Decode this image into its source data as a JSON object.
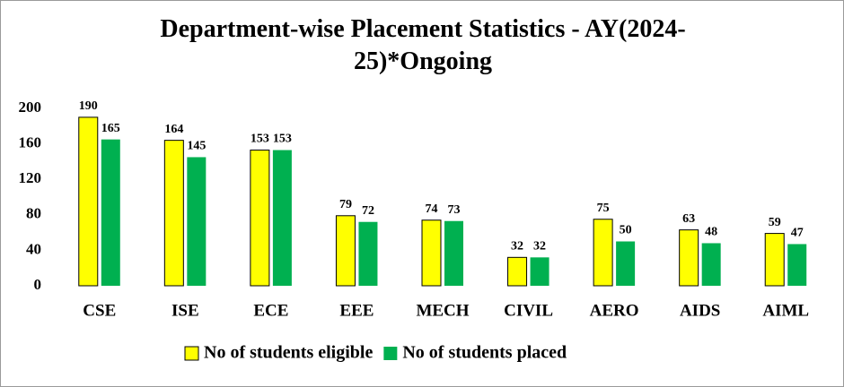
{
  "chart_data": {
    "type": "bar",
    "title": "Department-wise Placement Statistics - AY(2024-25)*Ongoing",
    "categories": [
      "CSE",
      "ISE",
      "ECE",
      "EEE",
      "MECH",
      "CIVIL",
      "AERO",
      "AIDS",
      "AIML"
    ],
    "series": [
      {
        "name": "No of students eligible",
        "color": "#ffff00",
        "values": [
          190,
          164,
          153,
          79,
          74,
          32,
          75,
          63,
          59
        ]
      },
      {
        "name": "No of students placed",
        "color": "#00b050",
        "values": [
          165,
          145,
          153,
          72,
          73,
          32,
          50,
          48,
          47
        ]
      }
    ],
    "ylim": [
      0,
      200
    ],
    "yticks": [
      0,
      40,
      80,
      120,
      160,
      200
    ],
    "grid": false,
    "legend": "bottom"
  }
}
